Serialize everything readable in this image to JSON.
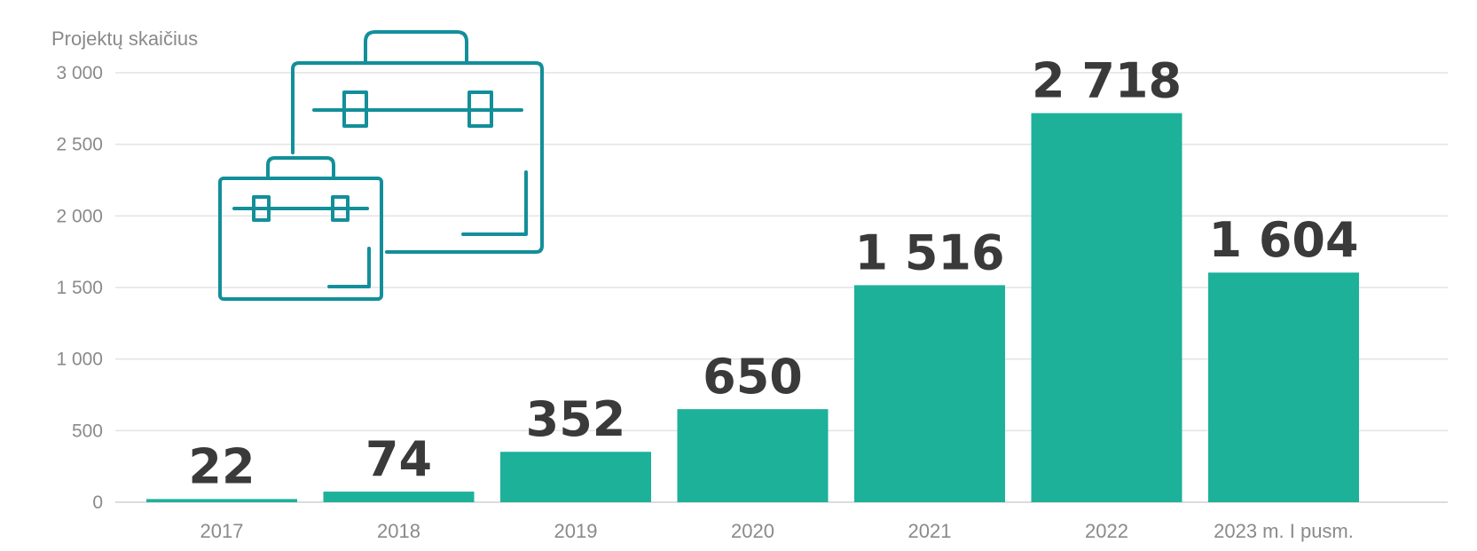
{
  "colors": {
    "bar": "#1db19a",
    "icon": "#138f9a",
    "value_text": "#3a3a3a",
    "axis_text": "#8a8a8a",
    "grid": "#e3e3e3"
  },
  "icons": {
    "illustration": "briefcase-icon"
  },
  "chart_data": {
    "type": "bar",
    "title": "",
    "xlabel": "",
    "ylabel": "Projektų skaičius",
    "ylim": [
      0,
      3000
    ],
    "yticks": [
      0,
      500,
      1000,
      1500,
      2000,
      2500,
      3000
    ],
    "ytick_labels": [
      "0",
      "500",
      "1 000",
      "1 500",
      "2 000",
      "2 500",
      "3 000"
    ],
    "grid": true,
    "legend": "none",
    "categories": [
      "2017",
      "2018",
      "2019",
      "2020",
      "2021",
      "2022",
      "2023 m. I pusm."
    ],
    "values": [
      22,
      74,
      352,
      650,
      1516,
      2718,
      1604
    ],
    "value_labels": [
      "22",
      "74",
      "352",
      "650",
      "1 516",
      "2 718",
      "1 604"
    ]
  }
}
